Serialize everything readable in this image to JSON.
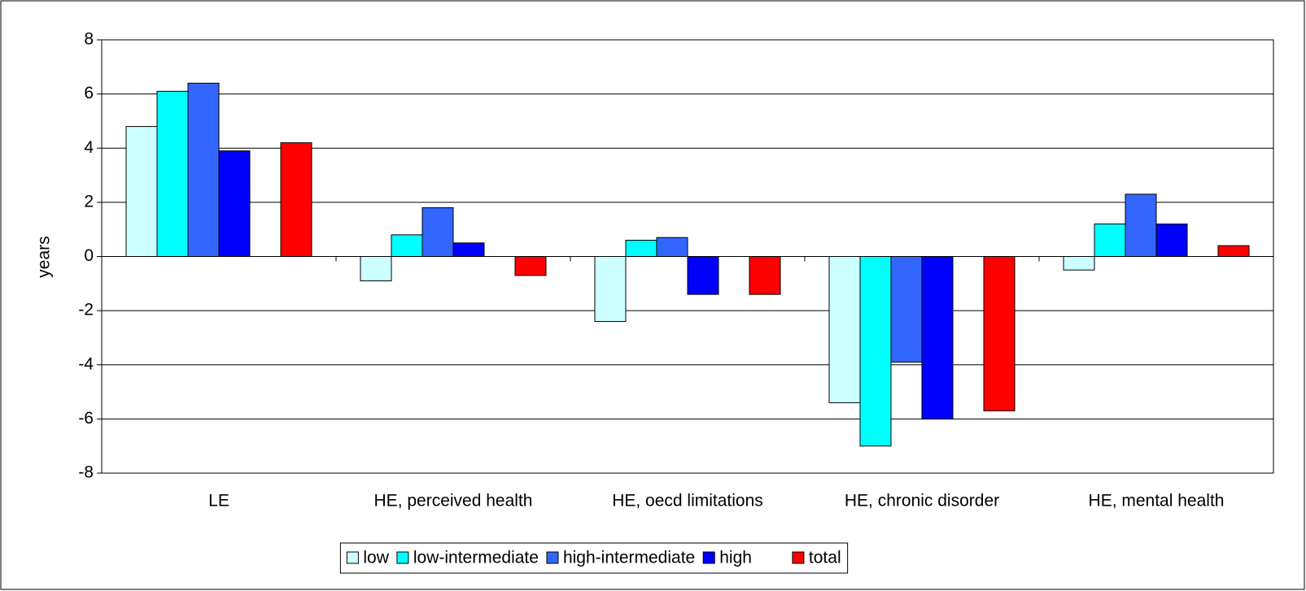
{
  "chart_data": {
    "type": "bar",
    "y_label": "years",
    "categories": [
      "LE",
      "HE, perceived health",
      "HE, oecd limitations",
      "HE, chronic disorder",
      "HE, mental health"
    ],
    "series": [
      {
        "name": "low",
        "color": "#ccffff",
        "values": [
          4.8,
          -0.9,
          -2.4,
          -5.4,
          -0.5
        ]
      },
      {
        "name": "low-intermediate",
        "color": "#00ffff",
        "values": [
          6.1,
          0.8,
          0.6,
          -7.0,
          1.2
        ]
      },
      {
        "name": "high-intermediate",
        "color": "#3366ff",
        "values": [
          6.4,
          1.8,
          0.7,
          -3.9,
          2.3
        ]
      },
      {
        "name": "high",
        "color": "#0000ff",
        "values": [
          3.9,
          0.5,
          -1.4,
          -6.0,
          1.2
        ]
      },
      {
        "name": "total",
        "color": "#ff0000",
        "values": [
          4.2,
          -0.7,
          -1.4,
          -5.7,
          0.4
        ]
      }
    ],
    "ylim": [
      -8,
      8
    ],
    "yticks": [
      -8,
      -6,
      -4,
      -2,
      0,
      2,
      4,
      6,
      8
    ],
    "grid": true,
    "legend": "bottom"
  }
}
